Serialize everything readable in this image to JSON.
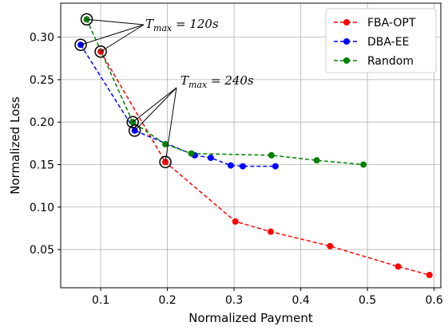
{
  "chart_data": {
    "type": "line",
    "xlabel": "Normalized Payment",
    "ylabel": "Normalized Loss",
    "xlim": [
      0.04,
      0.61
    ],
    "ylim": [
      0.005,
      0.34
    ],
    "xticks": [
      0.1,
      0.2,
      0.3,
      0.4,
      0.5,
      0.6
    ],
    "xtick_labels": [
      "0.1",
      "0.2",
      "0.3",
      "0.4",
      "0.5",
      "0.6"
    ],
    "yticks": [
      0.05,
      0.1,
      0.15,
      0.2,
      0.25,
      0.3
    ],
    "ytick_labels": [
      "0.05",
      "0.10",
      "0.15",
      "0.20",
      "0.25",
      "0.30"
    ],
    "grid": true,
    "legend_position": "top-right",
    "series": [
      {
        "name": "FBA-OPT",
        "color": "#ff0000",
        "x": [
          0.1,
          0.197,
          0.302,
          0.355,
          0.444,
          0.546,
          0.593
        ],
        "y": [
          0.283,
          0.153,
          0.083,
          0.071,
          0.054,
          0.03,
          0.02
        ]
      },
      {
        "name": "DBA-EE",
        "color": "#0000ff",
        "x": [
          0.07,
          0.151,
          0.241,
          0.265,
          0.295,
          0.313,
          0.362
        ],
        "y": [
          0.291,
          0.19,
          0.161,
          0.158,
          0.149,
          0.148,
          0.148
        ]
      },
      {
        "name": "Random",
        "color": "#008000",
        "x": [
          0.079,
          0.148,
          0.197,
          0.236,
          0.356,
          0.424,
          0.494
        ],
        "y": [
          0.321,
          0.2,
          0.174,
          0.163,
          0.161,
          0.155,
          0.15
        ]
      }
    ],
    "annotations": [
      {
        "label_main": "T",
        "label_sub": "max",
        "label_rest": " = 120s",
        "points": [
          [
            0.079,
            0.321
          ],
          [
            0.07,
            0.291
          ],
          [
            0.1,
            0.283
          ]
        ]
      },
      {
        "label_main": "T",
        "label_sub": "max",
        "label_rest": " = 240s",
        "points": [
          [
            0.148,
            0.2
          ],
          [
            0.151,
            0.19
          ],
          [
            0.197,
            0.153
          ]
        ]
      }
    ]
  }
}
